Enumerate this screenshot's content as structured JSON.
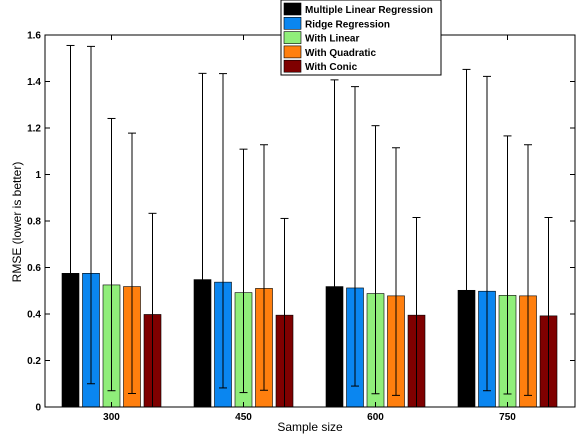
{
  "chart_data": {
    "type": "bar",
    "title": "",
    "xlabel": "Sample size",
    "ylabel": "RMSE (lower is better)",
    "categories": [
      "300",
      "450",
      "600",
      "750"
    ],
    "ylim": [
      0,
      1.6
    ],
    "yticks": [
      "0",
      "0.2",
      "0.4",
      "0.6",
      "0.8",
      "1",
      "1.2",
      "1.4",
      "1.6"
    ],
    "grid": false,
    "legend_position": "top-right",
    "series": [
      {
        "name": "Multiple Linear Regression",
        "color": "#000000",
        "values": [
          0.575,
          0.548,
          0.518,
          0.502
        ],
        "err_high": [
          1.555,
          1.435,
          1.407,
          1.452
        ],
        "err_low": [
          null,
          null,
          null,
          null
        ]
      },
      {
        "name": "Ridge Regression",
        "color": "#0a86f0",
        "values": [
          0.575,
          0.537,
          0.512,
          0.498
        ],
        "err_high": [
          1.551,
          1.434,
          1.378,
          1.422
        ],
        "err_low": [
          0.1,
          0.082,
          0.09,
          0.07
        ]
      },
      {
        "name": "With Linear",
        "color": "#90ee7a",
        "values": [
          0.525,
          0.492,
          0.488,
          0.48
        ],
        "err_high": [
          1.241,
          1.109,
          1.21,
          1.166
        ],
        "err_low": [
          0.07,
          0.062,
          0.057,
          0.056
        ]
      },
      {
        "name": "With Quadratic",
        "color": "#ff7f0e",
        "values": [
          0.518,
          0.51,
          0.478,
          0.478
        ],
        "err_high": [
          1.178,
          1.128,
          1.115,
          1.128
        ],
        "err_low": [
          0.058,
          0.072,
          0.05,
          0.05
        ]
      },
      {
        "name": "With Conic",
        "color": "#7f0000",
        "values": [
          0.398,
          0.395,
          0.395,
          0.392
        ],
        "err_high": [
          0.833,
          0.811,
          0.815,
          0.815
        ],
        "err_low": [
          0.0,
          0.0,
          0.0,
          0.0
        ]
      }
    ]
  }
}
